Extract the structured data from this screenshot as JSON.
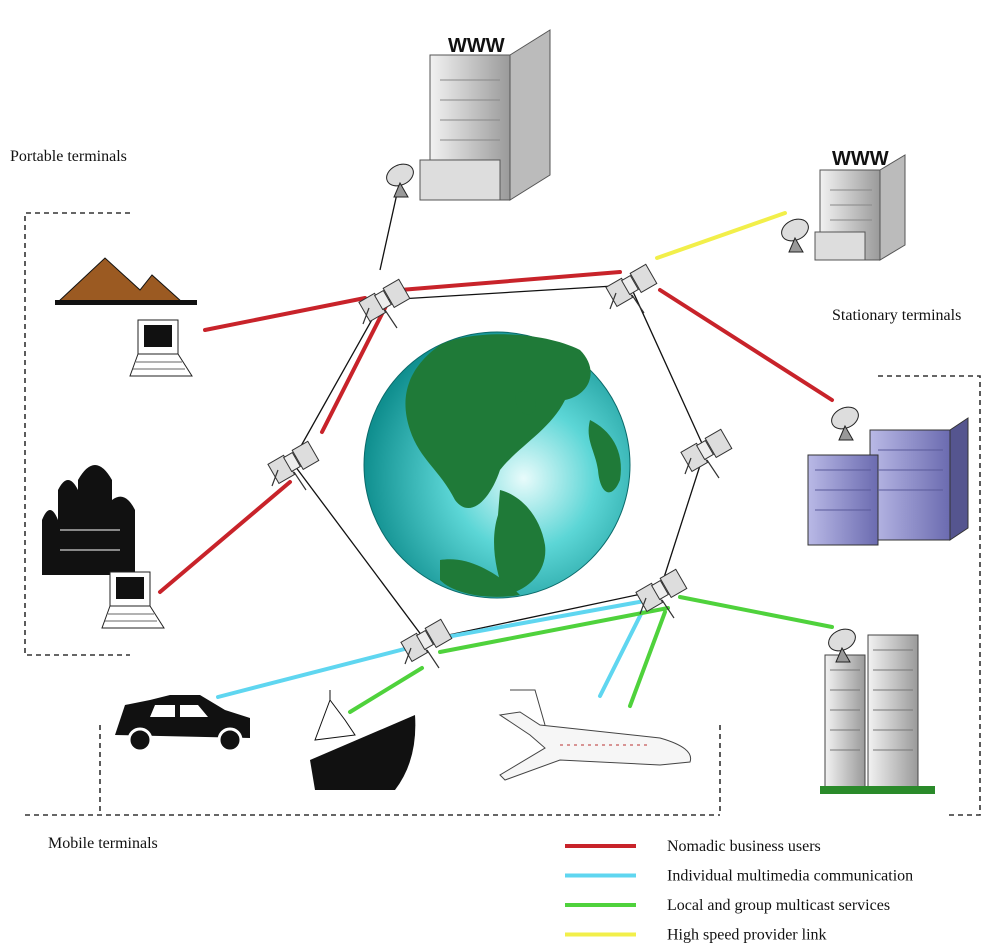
{
  "groups": {
    "portable": "Portable terminals",
    "stationary": "Stationary terminals",
    "mobile": "Mobile terminals"
  },
  "buildings": [
    {
      "label": "WWW"
    },
    {
      "label": "WWW"
    }
  ],
  "legend": [
    {
      "label": "Nomadic business users",
      "color": "#c8232a"
    },
    {
      "label": "Individual multimedia communication",
      "color": "#5fd6f0"
    },
    {
      "label": "Local and group multicast services",
      "color": "#4fd23c"
    },
    {
      "label": "High speed provider link",
      "color": "#f2ef4a"
    }
  ]
}
